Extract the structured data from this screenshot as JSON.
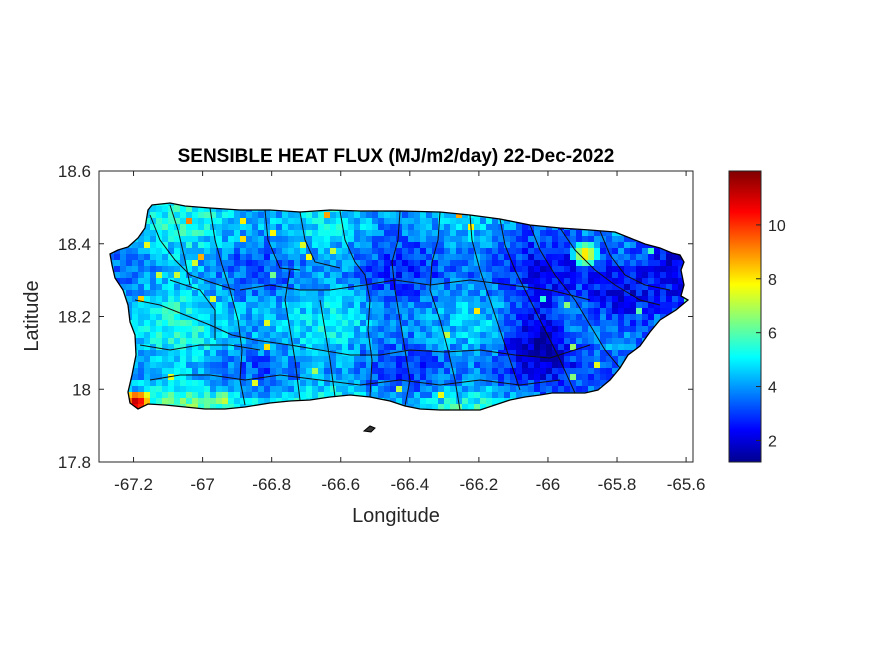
{
  "chart_data": {
    "type": "heatmap",
    "title": "SENSIBLE HEAT FLUX (MJ/m2/day) 22-Dec-2022",
    "xlabel": "Longitude",
    "ylabel": "Latitude",
    "xlim": [
      -67.3,
      -65.58
    ],
    "ylim": [
      17.8,
      18.6
    ],
    "xticks": [
      -67.2,
      -67,
      -66.8,
      -66.6,
      -66.4,
      -66.2,
      -66,
      -65.8,
      -65.6
    ],
    "yticks": [
      17.8,
      18,
      18.2,
      18.4,
      18.6
    ],
    "xtick_labels": [
      "-67.2",
      "-67",
      "-66.8",
      "-66.6",
      "-66.4",
      "-66.2",
      "-66",
      "-65.8",
      "-65.6"
    ],
    "ytick_labels": [
      "17.8",
      "18",
      "18.2",
      "18.4",
      "18.6"
    ],
    "colorbar": {
      "colormap": "jet",
      "range": [
        1.2,
        12
      ],
      "ticks": [
        2,
        4,
        6,
        8,
        10
      ],
      "tick_labels": [
        "2",
        "4",
        "6",
        "8",
        "10"
      ]
    },
    "colormap_colors": [
      "#00008f",
      "#0000ff",
      "#00ffff",
      "#ffff00",
      "#ff0000",
      "#800000"
    ],
    "field_summary": {
      "typical_range": [
        3,
        6
      ],
      "hotspots": [
        {
          "lon": -67.2,
          "lat": 17.97,
          "value": 12
        },
        {
          "lon": -66.95,
          "lat": 17.98,
          "value": 8
        },
        {
          "lon": -65.9,
          "lat": 18.38,
          "value": 9
        }
      ],
      "low_regions": [
        {
          "lon": -65.8,
          "lat": 18.25,
          "value": 2
        },
        {
          "lon": -66.05,
          "lat": 18.15,
          "value": 2.5
        }
      ]
    }
  }
}
